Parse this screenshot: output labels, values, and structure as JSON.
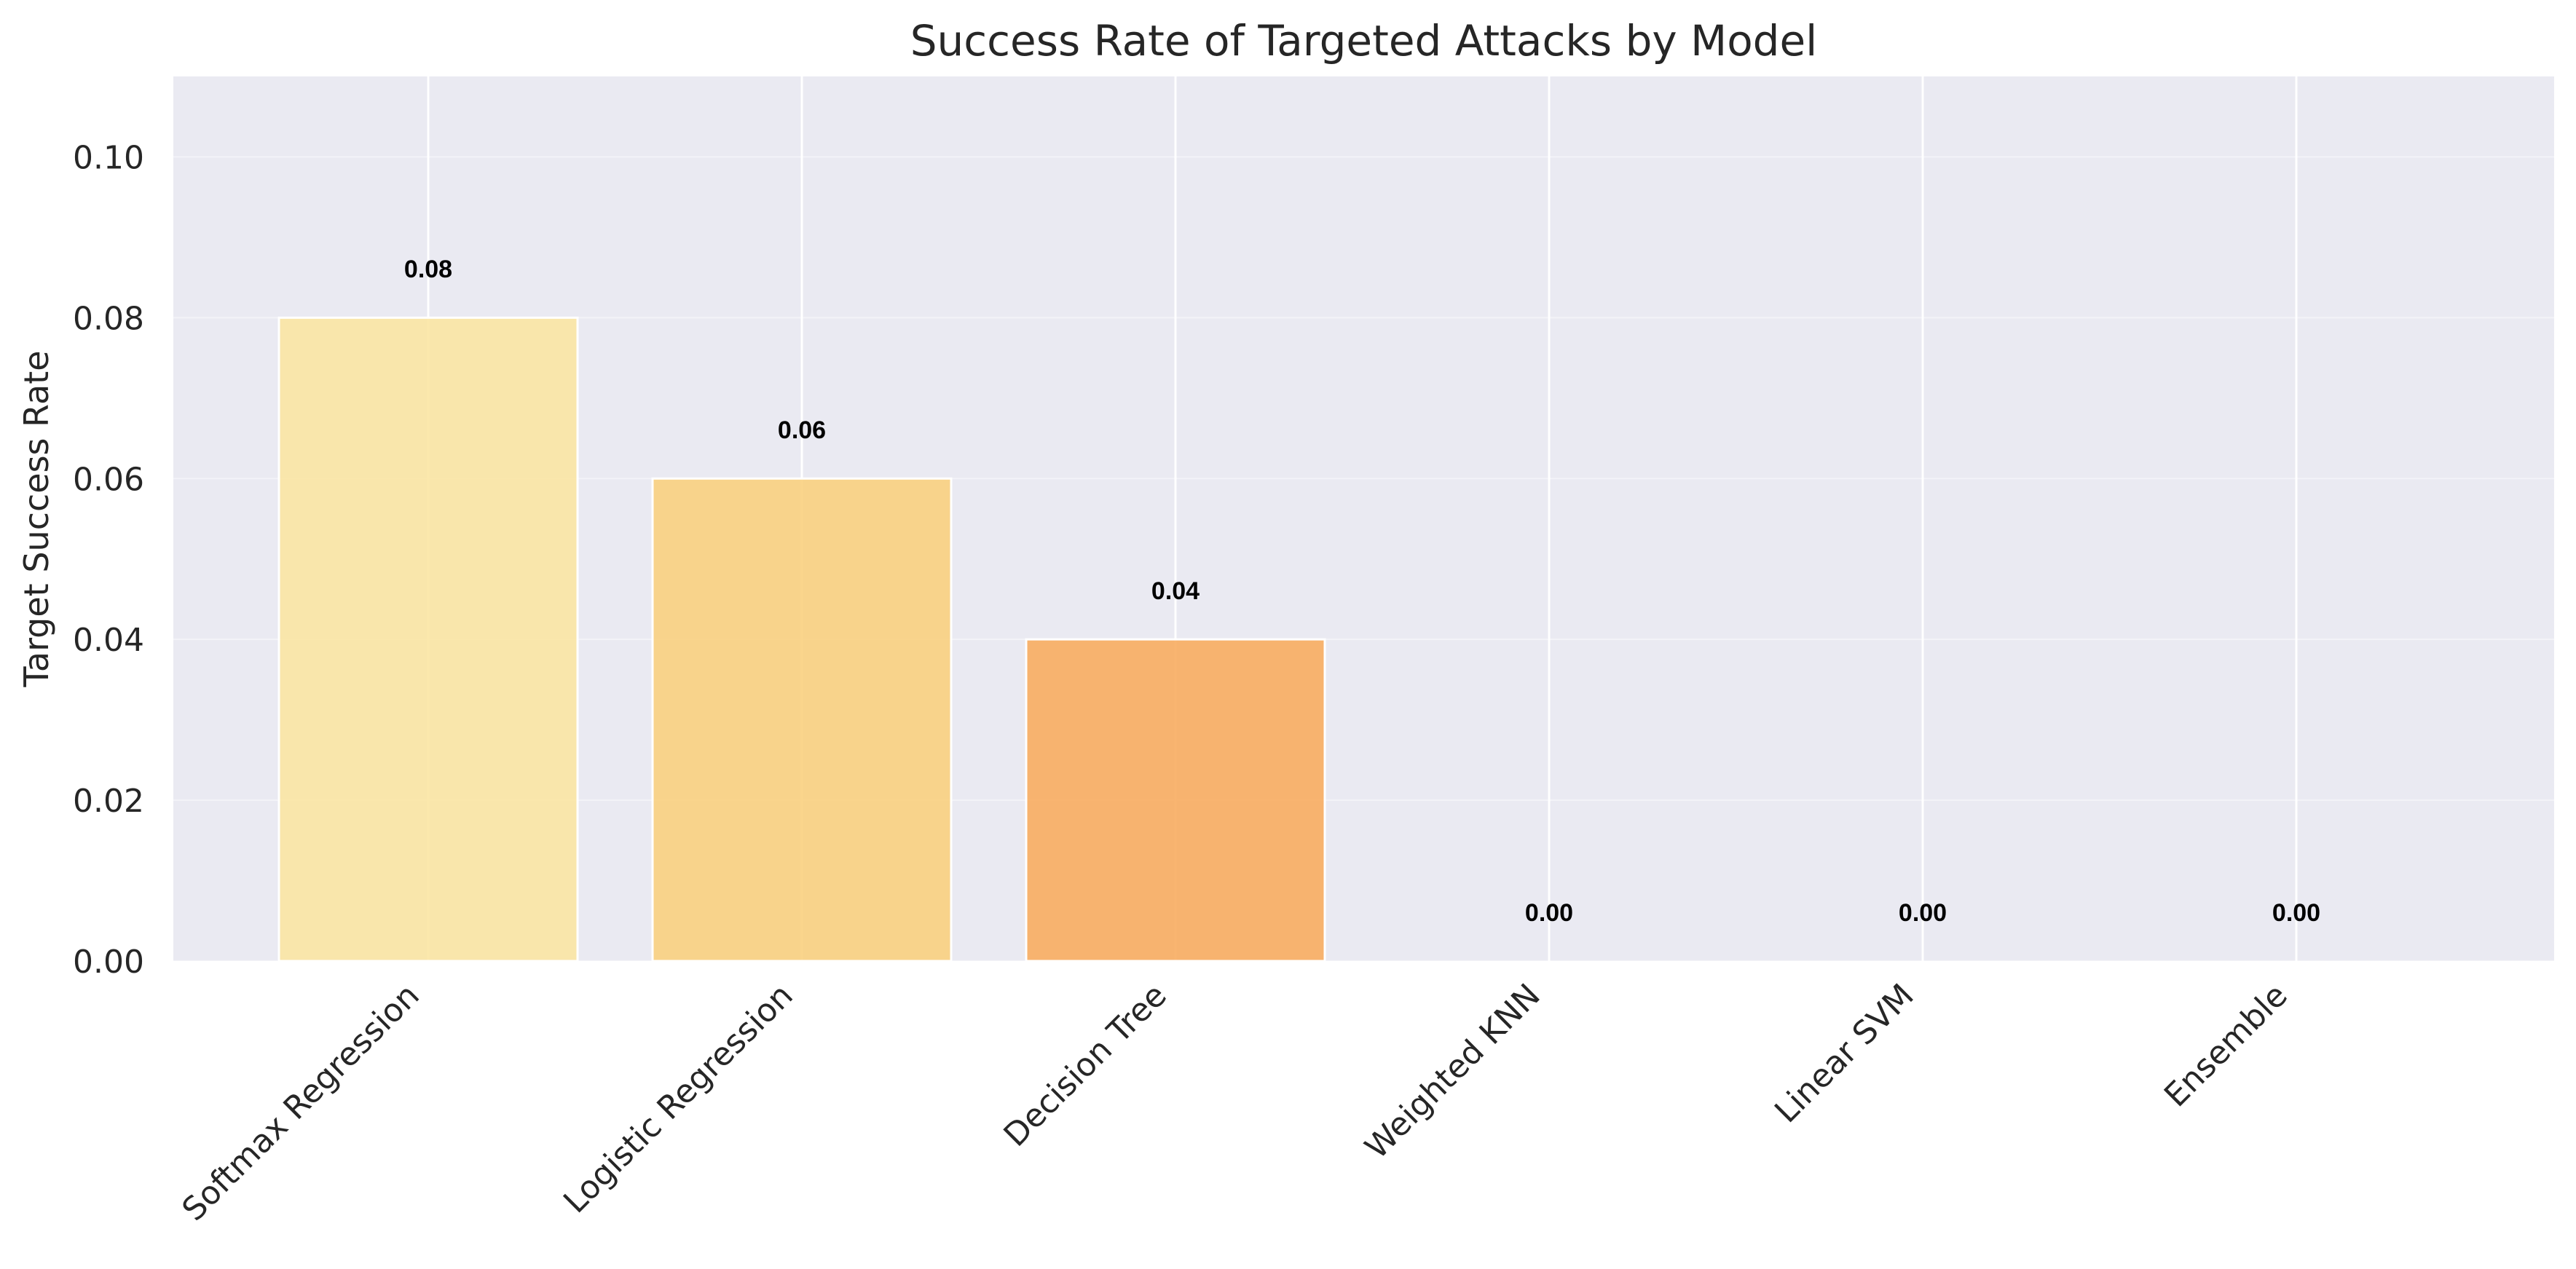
{
  "chart_data": {
    "type": "bar",
    "title": "Success Rate of Targeted Attacks by Model",
    "xlabel": "",
    "ylabel": "Target Success Rate",
    "categories": [
      "Softmax Regression",
      "Logistic Regression",
      "Decision Tree",
      "Weighted KNN",
      "Linear SVM",
      "Ensemble"
    ],
    "values": [
      0.08,
      0.06,
      0.04,
      0.0,
      0.0,
      0.0
    ],
    "data_labels": [
      "0.08",
      "0.06",
      "0.04",
      "0.00",
      "0.00",
      "0.00"
    ],
    "bar_colors": [
      "#fbe6a3",
      "#f9d07f",
      "#f8ad61",
      "#f28c4c",
      "#e8663f",
      "#d1483a"
    ],
    "ylim": [
      0,
      0.11
    ],
    "yticks": [
      0.0,
      0.02,
      0.04,
      0.06,
      0.08,
      0.1
    ],
    "ytick_labels": [
      "0.00",
      "0.02",
      "0.04",
      "0.06",
      "0.08",
      "0.10"
    ],
    "grid": true,
    "legend": "none",
    "background": "#eaeaf2"
  }
}
